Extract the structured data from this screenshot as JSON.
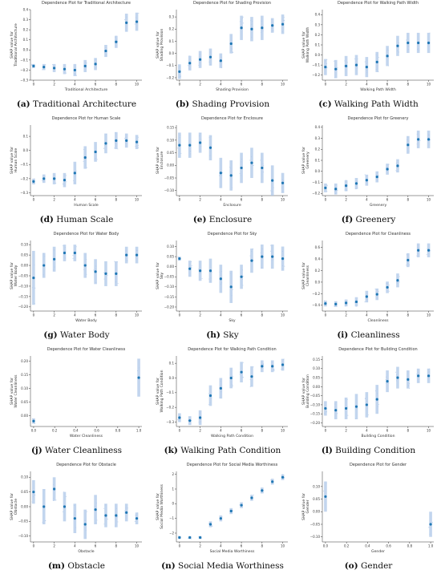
{
  "colors": {
    "point": "#1f77b4",
    "spread": "#aec7e8",
    "axis": "#333333"
  },
  "chart_data": [
    {
      "type": "scatter",
      "letter": "(a)",
      "caption": "Traditional Architecture",
      "title": "Dependence Plot for Traditional Architecture",
      "xlabel": "Traditional Architecture",
      "ylabel": [
        "SHAP value for",
        "Traditional Architecture"
      ],
      "xlim": [
        -0.3,
        10.5
      ],
      "ylim": [
        -0.3,
        0.4
      ],
      "xticks": [
        0,
        2,
        4,
        6,
        8,
        10
      ],
      "xtick_labels": [
        "0",
        "2",
        "4",
        "6",
        "8",
        "10"
      ],
      "yticks": [
        -0.3,
        -0.2,
        -0.1,
        0.0,
        0.1,
        0.2,
        0.3,
        0.4
      ],
      "ytick_labels": [
        "−0.3",
        "−0.2",
        "−0.1",
        "0.0",
        "0.1",
        "0.2",
        "0.3",
        "0.4"
      ],
      "x": [
        0,
        1,
        2,
        3,
        4,
        5,
        6,
        7,
        8,
        9,
        10
      ],
      "y": [
        -0.16,
        -0.17,
        -0.18,
        -0.19,
        -0.2,
        -0.16,
        -0.14,
        -0.01,
        0.08,
        0.27,
        0.28
      ],
      "spread": [
        0.02,
        0.03,
        0.04,
        0.05,
        0.06,
        0.06,
        0.06,
        0.06,
        0.06,
        0.09,
        0.09
      ]
    },
    {
      "type": "scatter",
      "letter": "(b)",
      "caption": "Shading Provision",
      "title": "Dependence Plot for Shading Provision",
      "xlabel": "Shading Provision",
      "ylabel": [
        "SHAP value for",
        "Shading Provision"
      ],
      "xlim": [
        -0.3,
        10.5
      ],
      "ylim": [
        -0.22,
        0.36
      ],
      "xticks": [
        0,
        2,
        4,
        6,
        8,
        10
      ],
      "xtick_labels": [
        "0",
        "2",
        "4",
        "6",
        "8",
        "10"
      ],
      "yticks": [
        -0.2,
        -0.1,
        0.0,
        0.1,
        0.2,
        0.3
      ],
      "ytick_labels": [
        "−0.2",
        "−0.1",
        "0.0",
        "0.1",
        "0.2",
        "0.3"
      ],
      "x": [
        0,
        1,
        2,
        3,
        4,
        5,
        6,
        7,
        8,
        9,
        10
      ],
      "y": [
        -0.15,
        -0.08,
        -0.05,
        -0.03,
        -0.06,
        0.08,
        0.21,
        0.2,
        0.21,
        0.23,
        0.24
      ],
      "spread": [
        0.06,
        0.06,
        0.07,
        0.07,
        0.06,
        0.08,
        0.1,
        0.1,
        0.1,
        0.06,
        0.08
      ]
    },
    {
      "type": "scatter",
      "letter": "(c)",
      "caption": "Walking Path Width",
      "title": "Dependence Plot for Walking Path Width",
      "xlabel": "Walking Path Width",
      "ylabel": [
        "SHAP value for",
        "Walking Path Width"
      ],
      "xlim": [
        -0.3,
        10.5
      ],
      "ylim": [
        -0.25,
        0.45
      ],
      "xticks": [
        0,
        2,
        4,
        6,
        8,
        10
      ],
      "xtick_labels": [
        "0",
        "2",
        "4",
        "6",
        "8",
        "10"
      ],
      "yticks": [
        -0.2,
        -0.1,
        0.0,
        0.1,
        0.2,
        0.3,
        0.4
      ],
      "ytick_labels": [
        "−0.2",
        "−0.1",
        "0.0",
        "0.1",
        "0.2",
        "0.3",
        "0.4"
      ],
      "x": [
        0,
        1,
        2,
        3,
        4,
        5,
        6,
        7,
        8,
        9,
        10
      ],
      "y": [
        -0.12,
        -0.14,
        -0.11,
        -0.1,
        -0.12,
        -0.07,
        -0.01,
        0.09,
        0.12,
        0.12,
        0.12
      ],
      "spread": [
        0.08,
        0.09,
        0.1,
        0.1,
        0.1,
        0.1,
        0.1,
        0.1,
        0.1,
        0.1,
        0.1
      ]
    },
    {
      "type": "scatter",
      "letter": "(d)",
      "caption": "Human Scale",
      "title": "Dependence Plot for Human Scale",
      "xlabel": "Human Scale",
      "ylabel": [
        "SHAP value for",
        "Human Scale"
      ],
      "xlim": [
        -0.3,
        10.5
      ],
      "ylim": [
        -0.32,
        0.18
      ],
      "xticks": [
        0,
        2,
        4,
        6,
        8,
        10
      ],
      "xtick_labels": [
        "0",
        "2",
        "4",
        "6",
        "8",
        "10"
      ],
      "yticks": [
        -0.3,
        -0.2,
        -0.1,
        0.0,
        0.1
      ],
      "ytick_labels": [
        "−0.3",
        "−0.2",
        "−0.1",
        "0.0",
        "0.1"
      ],
      "x": [
        0,
        1,
        2,
        3,
        4,
        5,
        6,
        7,
        8,
        9,
        10
      ],
      "y": [
        -0.22,
        -0.2,
        -0.2,
        -0.21,
        -0.16,
        -0.05,
        -0.01,
        0.05,
        0.07,
        0.07,
        0.06
      ],
      "spread": [
        0.02,
        0.03,
        0.04,
        0.05,
        0.08,
        0.08,
        0.07,
        0.07,
        0.06,
        0.05,
        0.05
      ]
    },
    {
      "type": "scatter",
      "letter": "(e)",
      "caption": "Enclosure",
      "title": "Dependence Plot for Enclosure",
      "xlabel": "Enclosure",
      "ylabel": [
        "SHAP value for",
        "Enclosure"
      ],
      "xlim": [
        -0.3,
        10.5
      ],
      "ylim": [
        -0.12,
        0.16
      ],
      "xticks": [
        0,
        2,
        4,
        6,
        8,
        10
      ],
      "xtick_labels": [
        "0",
        "2",
        "4",
        "6",
        "8",
        "10"
      ],
      "yticks": [
        -0.1,
        -0.05,
        0.0,
        0.05,
        0.1,
        0.15
      ],
      "ytick_labels": [
        "−0.10",
        "−0.05",
        "0.00",
        "0.05",
        "0.10",
        "0.15"
      ],
      "x": [
        0,
        1,
        2,
        3,
        4,
        5,
        6,
        7,
        8,
        9,
        10
      ],
      "y": [
        0.08,
        0.08,
        0.09,
        0.07,
        -0.03,
        -0.04,
        -0.01,
        0.01,
        -0.01,
        -0.06,
        -0.07
      ],
      "spread": [
        0.05,
        0.05,
        0.04,
        0.05,
        0.06,
        0.06,
        0.06,
        0.06,
        0.06,
        0.06,
        0.04
      ]
    },
    {
      "type": "scatter",
      "letter": "(f)",
      "caption": "Greenery",
      "title": "Dependence Plot for Greenery",
      "xlabel": "Greenery",
      "ylabel": [
        "SHAP value for",
        "Greenery"
      ],
      "xlim": [
        -0.3,
        10.5
      ],
      "ylim": [
        -0.22,
        0.42
      ],
      "xticks": [
        0,
        2,
        4,
        6,
        8,
        10
      ],
      "xtick_labels": [
        "0",
        "2",
        "4",
        "6",
        "8",
        "10"
      ],
      "yticks": [
        -0.2,
        -0.1,
        0.0,
        0.1,
        0.2,
        0.3,
        0.4
      ],
      "ytick_labels": [
        "−0.2",
        "−0.1",
        "0.0",
        "0.1",
        "0.2",
        "0.3",
        "0.4"
      ],
      "x": [
        0,
        1,
        2,
        3,
        4,
        5,
        6,
        7,
        8,
        9,
        10
      ],
      "y": [
        -0.15,
        -0.16,
        -0.13,
        -0.11,
        -0.08,
        -0.05,
        0.02,
        0.05,
        0.24,
        0.29,
        0.29
      ],
      "spread": [
        0.04,
        0.05,
        0.05,
        0.05,
        0.05,
        0.05,
        0.05,
        0.06,
        0.08,
        0.08,
        0.08
      ]
    },
    {
      "type": "scatter",
      "letter": "(g)",
      "caption": "Water Body",
      "title": "Dependence Plot for Water Body",
      "xlabel": "Water Body",
      "ylabel": [
        "SHAP value for",
        "Water Body"
      ],
      "xlim": [
        -0.3,
        10.5
      ],
      "ylim": [
        -0.22,
        0.12
      ],
      "xticks": [
        0,
        2,
        4,
        6,
        8,
        10
      ],
      "xtick_labels": [
        "0",
        "2",
        "4",
        "6",
        "8",
        "10"
      ],
      "yticks": [
        -0.2,
        -0.15,
        -0.1,
        -0.05,
        0.0,
        0.05,
        0.1
      ],
      "ytick_labels": [
        "−0.20",
        "−0.15",
        "−0.10",
        "−0.05",
        "0.00",
        "0.05",
        "0.10"
      ],
      "x": [
        0,
        1,
        2,
        3,
        4,
        5,
        6,
        7,
        8,
        9,
        10
      ],
      "y": [
        -0.06,
        0.0,
        0.03,
        0.06,
        0.06,
        0.0,
        -0.03,
        -0.04,
        -0.04,
        0.05,
        0.05
      ],
      "spread": [
        0.13,
        0.06,
        0.06,
        0.04,
        0.04,
        0.06,
        0.06,
        0.06,
        0.06,
        0.04,
        0.04
      ]
    },
    {
      "type": "scatter",
      "letter": "(h)",
      "caption": "Sky",
      "title": "Dependence Plot for Sky",
      "xlabel": "Sky",
      "ylabel": [
        "SHAP value for",
        "Sky"
      ],
      "xlim": [
        -0.3,
        10.5
      ],
      "ylim": [
        -0.22,
        0.13
      ],
      "xticks": [
        0,
        2,
        4,
        6,
        8,
        10
      ],
      "xtick_labels": [
        "0",
        "2",
        "4",
        "6",
        "8",
        "10"
      ],
      "yticks": [
        -0.2,
        -0.15,
        -0.1,
        -0.05,
        0.0,
        0.05,
        0.1
      ],
      "ytick_labels": [
        "−0.20",
        "−0.15",
        "−0.10",
        "−0.05",
        "0.00",
        "0.05",
        "0.10"
      ],
      "x": [
        0,
        1,
        2,
        3,
        4,
        5,
        6,
        7,
        8,
        9,
        10
      ],
      "y": [
        0.04,
        -0.01,
        -0.02,
        -0.02,
        -0.06,
        -0.1,
        -0.05,
        0.03,
        0.05,
        0.05,
        0.04
      ],
      "spread": [
        0.01,
        0.04,
        0.05,
        0.06,
        0.07,
        0.08,
        0.06,
        0.06,
        0.06,
        0.06,
        0.06
      ]
    },
    {
      "type": "scatter",
      "letter": "(i)",
      "caption": "Cleanliness",
      "title": "Dependence Plot for Cleanliness",
      "xlabel": "Cleanliness",
      "ylabel": [
        "SHAP value for",
        "Cleanliness"
      ],
      "xlim": [
        -0.3,
        10.5
      ],
      "ylim": [
        -0.5,
        0.72
      ],
      "xticks": [
        0,
        2,
        4,
        6,
        8,
        10
      ],
      "xtick_labels": [
        "0",
        "2",
        "4",
        "6",
        "8",
        "10"
      ],
      "yticks": [
        -0.4,
        -0.2,
        0.0,
        0.2,
        0.4,
        0.6
      ],
      "ytick_labels": [
        "−0.4",
        "−0.2",
        "0.0",
        "0.2",
        "0.4",
        "0.6"
      ],
      "x": [
        0,
        1,
        2,
        3,
        4,
        5,
        6,
        7,
        8,
        9,
        10
      ],
      "y": [
        -0.37,
        -0.38,
        -0.36,
        -0.34,
        -0.25,
        -0.21,
        -0.09,
        0.03,
        0.38,
        0.55,
        0.55
      ],
      "spread": [
        0.05,
        0.05,
        0.06,
        0.08,
        0.1,
        0.1,
        0.1,
        0.12,
        0.12,
        0.12,
        0.12
      ]
    },
    {
      "type": "scatter",
      "letter": "(j)",
      "caption": "Water Cleanliness",
      "title": "Dependence Plot for Water Cleanliness",
      "xlabel": "Water Cleanliness",
      "ylabel": [
        "SHAP value for",
        "Water Cleanliness"
      ],
      "xlim": [
        -0.03,
        1.03
      ],
      "ylim": [
        -0.04,
        0.22
      ],
      "xticks": [
        0.0,
        0.2,
        0.4,
        0.6,
        0.8,
        1.0
      ],
      "xtick_labels": [
        "0.0",
        "0.2",
        "0.4",
        "0.6",
        "0.8",
        "1.0"
      ],
      "yticks": [
        0.0,
        0.05,
        0.1,
        0.15,
        0.2
      ],
      "ytick_labels": [
        "0.00",
        "0.05",
        "0.10",
        "0.15",
        "0.20"
      ],
      "x": [
        0,
        1
      ],
      "y": [
        -0.02,
        0.14
      ],
      "spread": [
        0.01,
        0.07
      ]
    },
    {
      "type": "scatter",
      "letter": "(k)",
      "caption": "Walking Path Condition",
      "title": "Dependence Plot for Walking Path Condition",
      "xlabel": "Walking Path Condition",
      "ylabel": [
        "SHAP value for",
        "Walking Path Condition"
      ],
      "xlim": [
        -0.3,
        10.5
      ],
      "ylim": [
        -0.33,
        0.15
      ],
      "xticks": [
        0,
        2,
        4,
        6,
        8,
        10
      ],
      "xtick_labels": [
        "0",
        "2",
        "4",
        "6",
        "8",
        "10"
      ],
      "yticks": [
        -0.3,
        -0.2,
        -0.1,
        0.0,
        0.1
      ],
      "ytick_labels": [
        "−0.3",
        "−0.2",
        "−0.1",
        "0.0",
        "0.1"
      ],
      "x": [
        0,
        1,
        2,
        3,
        4,
        5,
        6,
        7,
        8,
        9,
        10
      ],
      "y": [
        -0.27,
        -0.29,
        -0.27,
        -0.12,
        -0.07,
        0.0,
        0.04,
        0.01,
        0.08,
        0.08,
        0.09
      ],
      "spread": [
        0.03,
        0.03,
        0.05,
        0.07,
        0.07,
        0.07,
        0.07,
        0.07,
        0.04,
        0.04,
        0.04
      ]
    },
    {
      "type": "scatter",
      "letter": "(l)",
      "caption": "Building Condition",
      "title": "Dependence Plot for Building Condition",
      "xlabel": "Building Condition",
      "ylabel": [
        "SHAP value for",
        "Building Condition"
      ],
      "xlim": [
        -0.3,
        10.5
      ],
      "ylim": [
        -0.22,
        0.17
      ],
      "xticks": [
        0,
        2,
        4,
        6,
        8,
        10
      ],
      "xtick_labels": [
        "0",
        "2",
        "4",
        "6",
        "8",
        "10"
      ],
      "yticks": [
        -0.2,
        -0.15,
        -0.1,
        -0.05,
        0.0,
        0.05,
        0.1,
        0.15
      ],
      "ytick_labels": [
        "−0.20",
        "−0.15",
        "−0.10",
        "−0.05",
        "0.00",
        "0.05",
        "0.10",
        "0.15"
      ],
      "x": [
        0,
        1,
        2,
        3,
        4,
        5,
        6,
        7,
        8,
        9,
        10
      ],
      "y": [
        -0.12,
        -0.13,
        -0.12,
        -0.11,
        -0.1,
        -0.07,
        0.03,
        0.05,
        0.04,
        0.06,
        0.06
      ],
      "spread": [
        0.04,
        0.05,
        0.06,
        0.07,
        0.07,
        0.08,
        0.06,
        0.06,
        0.05,
        0.04,
        0.04
      ]
    },
    {
      "type": "scatter",
      "letter": "(m)",
      "caption": "Obstacle",
      "title": "Dependence Plot for Obstacle",
      "xlabel": "Obstacle",
      "ylabel": [
        "SHAP value for",
        "Obstacle"
      ],
      "xlim": [
        -0.3,
        10.5
      ],
      "ylim": [
        -0.12,
        0.12
      ],
      "xticks": [
        0,
        2,
        4,
        6,
        8,
        10
      ],
      "xtick_labels": [
        "0",
        "2",
        "4",
        "6",
        "8",
        "10"
      ],
      "yticks": [
        -0.1,
        -0.05,
        0.0,
        0.05,
        0.1
      ],
      "ytick_labels": [
        "−0.10",
        "−0.05",
        "0.00",
        "0.05",
        "0.10"
      ],
      "x": [
        0,
        1,
        2,
        3,
        4,
        5,
        6,
        7,
        8,
        9,
        10
      ],
      "y": [
        0.05,
        0.0,
        0.06,
        0.0,
        -0.04,
        -0.06,
        -0.01,
        -0.03,
        -0.03,
        -0.02,
        -0.04
      ],
      "spread": [
        0.04,
        0.06,
        0.04,
        0.05,
        0.05,
        0.05,
        0.05,
        0.04,
        0.04,
        0.03,
        0.02
      ]
    },
    {
      "type": "scatter",
      "letter": "(n)",
      "caption": "Social Media Worthiness",
      "title": "Dependence Plot for Social Media Worthiness",
      "xlabel": "Social Media Worthiness",
      "ylabel": [
        "SHAP value for",
        "Social Media Worthiness"
      ],
      "xlim": [
        -0.3,
        10.5
      ],
      "ylim": [
        -2.6,
        2.2
      ],
      "xticks": [
        0,
        2,
        4,
        6,
        8,
        10
      ],
      "xtick_labels": [
        "0",
        "2",
        "4",
        "6",
        "8",
        "10"
      ],
      "yticks": [
        -2,
        -1,
        0,
        1,
        2
      ],
      "ytick_labels": [
        "−2",
        "−1",
        "0",
        "1",
        "2"
      ],
      "x": [
        0,
        1,
        2,
        3,
        4,
        5,
        6,
        7,
        8,
        9,
        10
      ],
      "y": [
        -2.3,
        -2.3,
        -2.3,
        -1.4,
        -1.0,
        -0.5,
        -0.1,
        0.4,
        0.9,
        1.5,
        1.8
      ],
      "spread": [
        0.1,
        0.1,
        0.1,
        0.2,
        0.2,
        0.2,
        0.2,
        0.2,
        0.2,
        0.2,
        0.2
      ]
    },
    {
      "type": "scatter",
      "letter": "(o)",
      "caption": "Gender",
      "title": "Dependence Plot for Gender",
      "xlabel": "Gender",
      "ylabel": [
        "SHAP value for",
        "Gender"
      ],
      "xlim": [
        -0.03,
        1.03
      ],
      "ylim": [
        -0.12,
        0.16
      ],
      "xticks": [
        0.0,
        0.2,
        0.4,
        0.6,
        0.8,
        1.0
      ],
      "xtick_labels": [
        "0.0",
        "0.2",
        "0.4",
        "0.6",
        "0.8",
        "1.0"
      ],
      "yticks": [
        -0.1,
        -0.05,
        0.0,
        0.05,
        0.1
      ],
      "ytick_labels": [
        "−0.10",
        "−0.05",
        "0.00",
        "0.05",
        "0.10"
      ],
      "x": [
        0,
        1
      ],
      "y": [
        0.06,
        -0.05
      ],
      "spread": [
        0.06,
        0.05
      ]
    }
  ]
}
